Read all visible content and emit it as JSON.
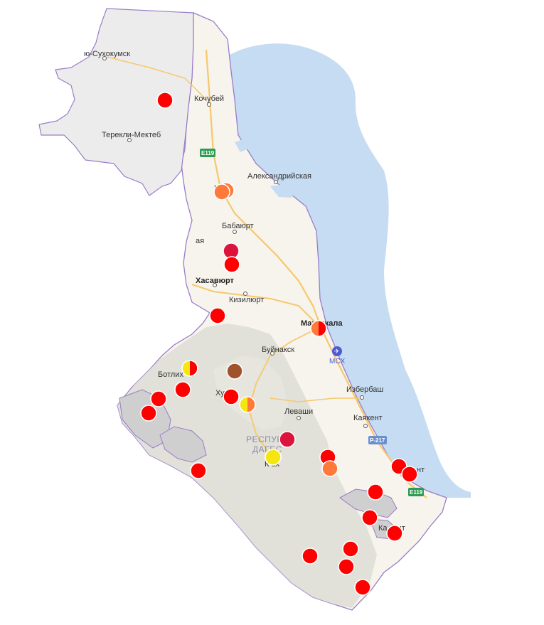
{
  "map": {
    "colors": {
      "sea": "#c6dcf2",
      "land": "#f6f4ec",
      "shaded_region": "#ececec",
      "mountains": "#dcdcd6",
      "road_major": "#f7c86b",
      "road_minor": "#ffffff",
      "border": "#9b7cc9",
      "e_shield": "#2e9a52",
      "p_shield": "#6a8fcf"
    },
    "labels": {
      "suhokumsk": "ю-Сухокумск",
      "kochubei": "Кочубей",
      "terekli": "Терекли-Мектеб",
      "aleksandriyskaya": "Александрийская",
      "babayurt": "Бабаюрт",
      "khasavyurt": "Хасавюрт",
      "kizilyurt": "Кизилюрт",
      "makhachkala": "Махачкала",
      "buynaksk": "Буйнакск",
      "botlikh": "Ботлих",
      "khunzakh": "Ху",
      "izberbash": "Избербаш",
      "levashi": "Леваши",
      "kayakent": "Каякент",
      "republic_line1": "РЕСПУБЛИ",
      "republic_line2": "ДАГЕС",
      "gunib_partial": "К   ах",
      "derbent_partial": "нт",
      "kasumkent_partial": "Ка   кент",
      "kizlyar_partial": "К",
      "aya": "ая",
      "airport": "MCX"
    },
    "shields": {
      "e119_north": "E119",
      "e119_south": "E119",
      "p217": "P-217"
    },
    "markers": [
      {
        "id": "m1",
        "colors": [
          "#ff0000"
        ]
      },
      {
        "id": "m2",
        "colors": [
          "#ff7a3a"
        ]
      },
      {
        "id": "m3",
        "colors": [
          "#ff7a3a"
        ]
      },
      {
        "id": "m4",
        "colors": [
          "#dc143c"
        ]
      },
      {
        "id": "m5",
        "colors": [
          "#ff0000"
        ]
      },
      {
        "id": "m6",
        "colors": [
          "#ff0000"
        ]
      },
      {
        "id": "m7",
        "colors": [
          "#ff7a3a",
          "#ff0000"
        ]
      },
      {
        "id": "m8",
        "colors": [
          "#f5e611",
          "#ff0000"
        ]
      },
      {
        "id": "m9",
        "colors": [
          "#a0522d"
        ]
      },
      {
        "id": "m10",
        "colors": [
          "#ff0000"
        ]
      },
      {
        "id": "m11",
        "colors": [
          "#ff0000"
        ]
      },
      {
        "id": "m12",
        "colors": [
          "#ff0000"
        ]
      },
      {
        "id": "m13",
        "colors": [
          "#ff0000"
        ]
      },
      {
        "id": "m14",
        "colors": [
          "#f5e611",
          "#ff7a3a"
        ]
      },
      {
        "id": "m15",
        "colors": [
          "#dc143c"
        ]
      },
      {
        "id": "m16",
        "colors": [
          "#f5e611"
        ]
      },
      {
        "id": "m17",
        "colors": [
          "#ff0000"
        ]
      },
      {
        "id": "m18",
        "colors": [
          "#ff7a3a"
        ]
      },
      {
        "id": "m19",
        "colors": [
          "#ff0000"
        ]
      },
      {
        "id": "m20",
        "colors": [
          "#ff0000"
        ]
      },
      {
        "id": "m21",
        "colors": [
          "#ff0000"
        ]
      },
      {
        "id": "m22",
        "colors": [
          "#ff0000"
        ]
      },
      {
        "id": "m23",
        "colors": [
          "#ff0000"
        ]
      },
      {
        "id": "m24",
        "colors": [
          "#ff0000"
        ]
      },
      {
        "id": "m25",
        "colors": [
          "#ff0000"
        ]
      },
      {
        "id": "m26",
        "colors": [
          "#ff0000"
        ]
      },
      {
        "id": "m27",
        "colors": [
          "#ff0000"
        ]
      }
    ]
  }
}
